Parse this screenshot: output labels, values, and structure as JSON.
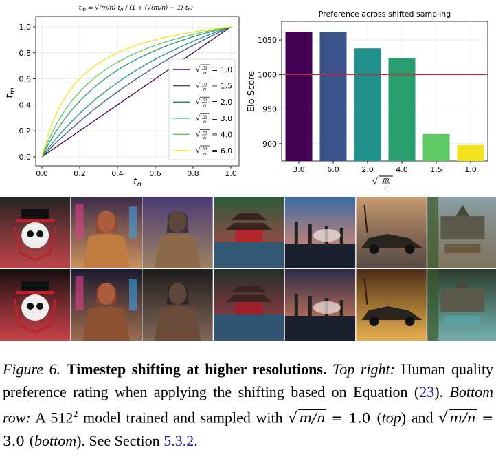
{
  "left_chart": {
    "title": "t_m = √(m/n) t_n / (1 + (√(m/n) − 1) t_n)",
    "xlabel": "t_n",
    "ylabel": "t_m",
    "xticks": [
      "0.0",
      "0.2",
      "0.4",
      "0.6",
      "0.8",
      "1.0"
    ],
    "yticks": [
      "0.0",
      "0.2",
      "0.4",
      "0.6",
      "0.8",
      "1.0"
    ],
    "legend": [
      {
        "label": "= 1.0",
        "alpha": 1.0,
        "color": "#440154"
      },
      {
        "label": "= 1.5",
        "alpha": 1.5,
        "color": "#3b528b"
      },
      {
        "label": "= 2.0",
        "alpha": 2.0,
        "color": "#21918c"
      },
      {
        "label": "= 3.0",
        "alpha": 3.0,
        "color": "#2a9d6e"
      },
      {
        "label": "= 4.0",
        "alpha": 4.0,
        "color": "#5ec962"
      },
      {
        "label": "= 6.0",
        "alpha": 6.0,
        "color": "#f2e21b"
      }
    ]
  },
  "chart_data": [
    {
      "type": "line",
      "title": "t_m = √(m/n) t_n / (1 + (√(m/n) − 1) t_n)",
      "xlabel": "t_n",
      "ylabel": "t_m",
      "xlim": [
        0,
        1
      ],
      "ylim": [
        0,
        1
      ],
      "series": [
        {
          "name": "√(m/n) = 1.0",
          "alpha": 1.0
        },
        {
          "name": "√(m/n) = 1.5",
          "alpha": 1.5
        },
        {
          "name": "√(m/n) = 2.0",
          "alpha": 2.0
        },
        {
          "name": "√(m/n) = 3.0",
          "alpha": 3.0
        },
        {
          "name": "√(m/n) = 4.0",
          "alpha": 4.0
        },
        {
          "name": "√(m/n) = 6.0",
          "alpha": 6.0
        }
      ]
    },
    {
      "type": "bar",
      "title": "Preference across shifted sampling",
      "xlabel": "√(m/n)",
      "ylabel": "Elo Score",
      "categories": [
        "3.0",
        "6.0",
        "2.0",
        "4.0",
        "1.5",
        "1.0"
      ],
      "values": [
        1062,
        1062,
        1038,
        1024,
        914,
        898
      ],
      "colors": [
        "#440154",
        "#3b528b",
        "#21918c",
        "#2a9d6e",
        "#5ec962",
        "#f2e21b"
      ],
      "yticks": [
        "900",
        "950",
        "1000",
        "1050"
      ],
      "ylim": [
        875,
        1077
      ],
      "reference_line": 1000,
      "reference_color": "#d62728"
    }
  ],
  "image_grid": {
    "rows": [
      {
        "row": "top",
        "tiles": [
          {
            "desc": "skull-logo",
            "bg": "#222222",
            "fg": "#b3262d"
          },
          {
            "desc": "woman-city",
            "bg": "#3a2a4a",
            "fg": "#c07b40"
          },
          {
            "desc": "man-leather",
            "bg": "#4a3a78",
            "fg": "#8c6a4a"
          },
          {
            "desc": "pagoda-lake",
            "bg": "#2b5c3a",
            "fg": "#b3262d"
          },
          {
            "desc": "industry-sunset",
            "bg": "#3a6aa8",
            "fg": "#f07a4a"
          },
          {
            "desc": "car-desert",
            "bg": "#c89a70",
            "fg": "#3a2a22"
          },
          {
            "desc": "temple-ruins",
            "bg": "#8aa0a8",
            "fg": "#6a5a40"
          }
        ]
      },
      {
        "row": "bottom",
        "tiles": [
          {
            "desc": "skull-logo",
            "bg": "#111111",
            "fg": "#c0202a"
          },
          {
            "desc": "woman-city",
            "bg": "#1a1a30",
            "fg": "#8a5030"
          },
          {
            "desc": "man-leather",
            "bg": "#1c1c1c",
            "fg": "#6a4a38"
          },
          {
            "desc": "pagoda-lake",
            "bg": "#20302a",
            "fg": "#a0202a"
          },
          {
            "desc": "industry-sunset",
            "bg": "#2a2a4a",
            "fg": "#e07040"
          },
          {
            "desc": "car-desert",
            "bg": "#4a2a14",
            "fg": "#e0a030"
          },
          {
            "desc": "temple-ruins",
            "bg": "#2a3a2a",
            "fg": "#5aa0a0"
          }
        ]
      }
    ]
  },
  "caption": {
    "label": "Figure 6.",
    "title": "Timestep shifting at higher resolutions.",
    "part1_label": "Top right:",
    "part1_text": "Human quality preference rating when applying the shifting based on Equation (",
    "eq_ref": "23",
    "part1_end": ").",
    "part2_label": "Bottom row:",
    "part2_text_a": "A 512",
    "part2_sup": "2",
    "part2_text_b": "model trained and sampled with",
    "sqrt_expr": "m/n",
    "val_top": "= 1.0 (",
    "word_top": "top",
    "and": ") and",
    "val_bottom": "= 3.0 (",
    "word_bottom": "bottom",
    "close": "). See Section",
    "section_ref": "5.3.2",
    "period": "."
  }
}
